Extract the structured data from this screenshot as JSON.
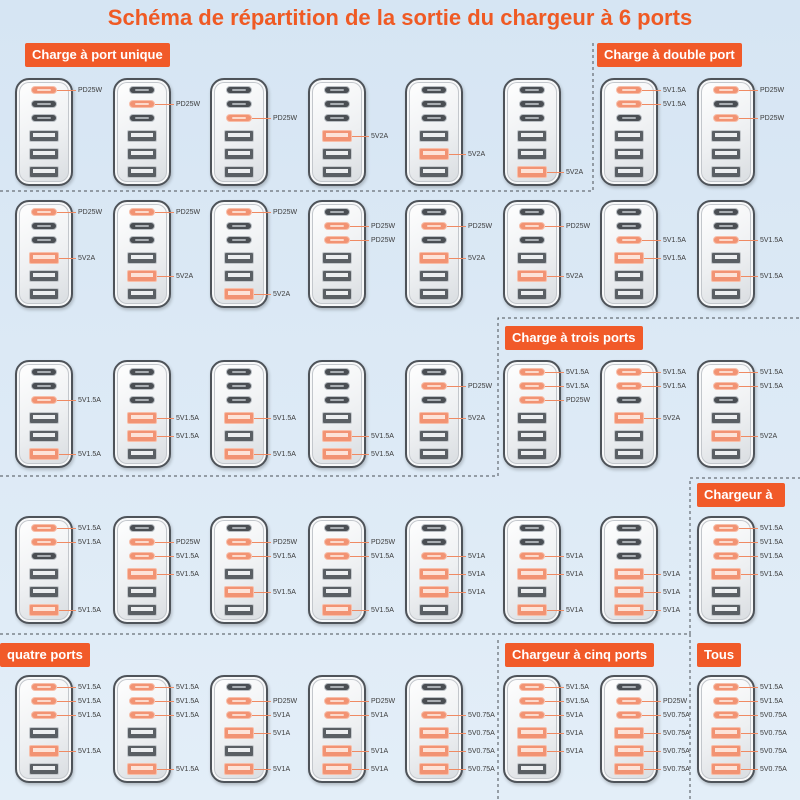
{
  "title": "Schéma de répartition de la sortie du chargeur à 6 ports",
  "sections": {
    "single_port": "Charge à port unique",
    "double_port": "Charge à double port",
    "triple_port": "Charge à trois ports",
    "quad_port_line1": "Chargeur à",
    "quad_port_line2": "quatre ports",
    "five_port": "Chargeur à cinq ports",
    "all_ports": "Tous"
  },
  "colors": {
    "accent": "#f15a29",
    "title": "#ef5a24",
    "port_active": "#f29373",
    "background": "#dce9f5"
  },
  "port_icons": [
    "usb-c-port-icon",
    "usb-c-port-icon",
    "usb-c-port-icon",
    "usb-a-port-icon",
    "usb-a-port-icon",
    "usb-a-port-icon"
  ],
  "chargers": [
    {
      "ports": [
        "PD25W",
        null,
        null,
        null,
        null,
        null
      ]
    },
    {
      "ports": [
        null,
        "PD25W",
        null,
        null,
        null,
        null
      ]
    },
    {
      "ports": [
        null,
        null,
        "PD25W",
        null,
        null,
        null
      ]
    },
    {
      "ports": [
        null,
        null,
        null,
        "5V2A",
        null,
        null
      ]
    },
    {
      "ports": [
        null,
        null,
        null,
        null,
        "5V2A",
        null
      ]
    },
    {
      "ports": [
        null,
        null,
        null,
        null,
        null,
        "5V2A"
      ]
    },
    {
      "ports": [
        "5V1.5A",
        "5V1.5A",
        null,
        null,
        null,
        null
      ]
    },
    {
      "ports": [
        "PD25W",
        null,
        "PD25W",
        null,
        null,
        null
      ]
    },
    {
      "ports": [
        "PD25W",
        null,
        null,
        "5V2A",
        null,
        null
      ]
    },
    {
      "ports": [
        "PD25W",
        null,
        null,
        null,
        "5V2A",
        null
      ]
    },
    {
      "ports": [
        "PD25W",
        null,
        null,
        null,
        null,
        "5V2A"
      ]
    },
    {
      "ports": [
        null,
        "PD25W",
        "PD25W",
        null,
        null,
        null
      ]
    },
    {
      "ports": [
        null,
        "PD25W",
        null,
        "5V2A",
        null,
        null
      ]
    },
    {
      "ports": [
        null,
        "PD25W",
        null,
        null,
        "5V2A",
        null
      ]
    },
    {
      "ports": [
        null,
        null,
        "5V1.5A",
        "5V1.5A",
        null,
        null
      ]
    },
    {
      "ports": [
        null,
        null,
        "5V1.5A",
        null,
        "5V1.5A",
        null
      ]
    },
    {
      "ports": [
        null,
        null,
        "5V1.5A",
        null,
        null,
        "5V1.5A"
      ]
    },
    {
      "ports": [
        null,
        null,
        null,
        "5V1.5A",
        "5V1.5A",
        null
      ]
    },
    {
      "ports": [
        null,
        null,
        null,
        "5V1.5A",
        null,
        "5V1.5A"
      ]
    },
    {
      "ports": [
        null,
        null,
        null,
        null,
        "5V1.5A",
        "5V1.5A"
      ]
    },
    {
      "ports": [
        null,
        "PD25W",
        null,
        "5V2A",
        null,
        null
      ]
    },
    {
      "ports": [
        "5V1.5A",
        "5V1.5A",
        "PD25W",
        null,
        null,
        null
      ]
    },
    {
      "ports": [
        "5V1.5A",
        "5V1.5A",
        null,
        "5V2A",
        null,
        null
      ]
    },
    {
      "ports": [
        "5V1.5A",
        "5V1.5A",
        null,
        null,
        "5V2A",
        null
      ]
    },
    {
      "ports": [
        "5V1.5A",
        "5V1.5A",
        null,
        null,
        null,
        "5V1.5A"
      ]
    },
    {
      "ports": [
        null,
        "PD25W",
        "5V1.5A",
        "5V1.5A",
        null,
        null
      ]
    },
    {
      "ports": [
        null,
        "PD25W",
        "5V1.5A",
        null,
        "5V1.5A",
        null
      ]
    },
    {
      "ports": [
        null,
        "PD25W",
        "5V1.5A",
        null,
        null,
        "5V1.5A"
      ]
    },
    {
      "ports": [
        null,
        null,
        "5V1A",
        "5V1A",
        "5V1A",
        null
      ]
    },
    {
      "ports": [
        null,
        null,
        "5V1A",
        "5V1A",
        null,
        "5V1A"
      ]
    },
    {
      "ports": [
        null,
        null,
        null,
        "5V1A",
        "5V1A",
        "5V1A"
      ]
    },
    {
      "ports": [
        "5V1.5A",
        "5V1.5A",
        "5V1.5A",
        "5V1.5A",
        null,
        null
      ]
    },
    {
      "ports": [
        "5V1.5A",
        "5V1.5A",
        "5V1.5A",
        null,
        "5V1.5A",
        null
      ]
    },
    {
      "ports": [
        "5V1.5A",
        "5V1.5A",
        "5V1.5A",
        null,
        null,
        "5V1.5A"
      ]
    },
    {
      "ports": [
        null,
        "PD25W",
        "5V1A",
        "5V1A",
        null,
        "5V1A"
      ]
    },
    {
      "ports": [
        null,
        "PD25W",
        "5V1A",
        null,
        "5V1A",
        "5V1A"
      ]
    },
    {
      "ports": [
        null,
        null,
        "5V0.75A",
        "5V0.75A",
        "5V0.75A",
        "5V0.75A"
      ]
    },
    {
      "ports": [
        "5V1.5A",
        "5V1.5A",
        "5V1A",
        "5V1A",
        "5V1A",
        null
      ]
    },
    {
      "ports": [
        null,
        "PD25W",
        "5V0.75A",
        "5V0.75A",
        "5V0.75A",
        "5V0.75A"
      ]
    },
    {
      "ports": [
        "5V1.5A",
        "5V1.5A",
        "5V0.75A",
        "5V0.75A",
        "5V0.75A",
        "5V0.75A"
      ]
    }
  ]
}
